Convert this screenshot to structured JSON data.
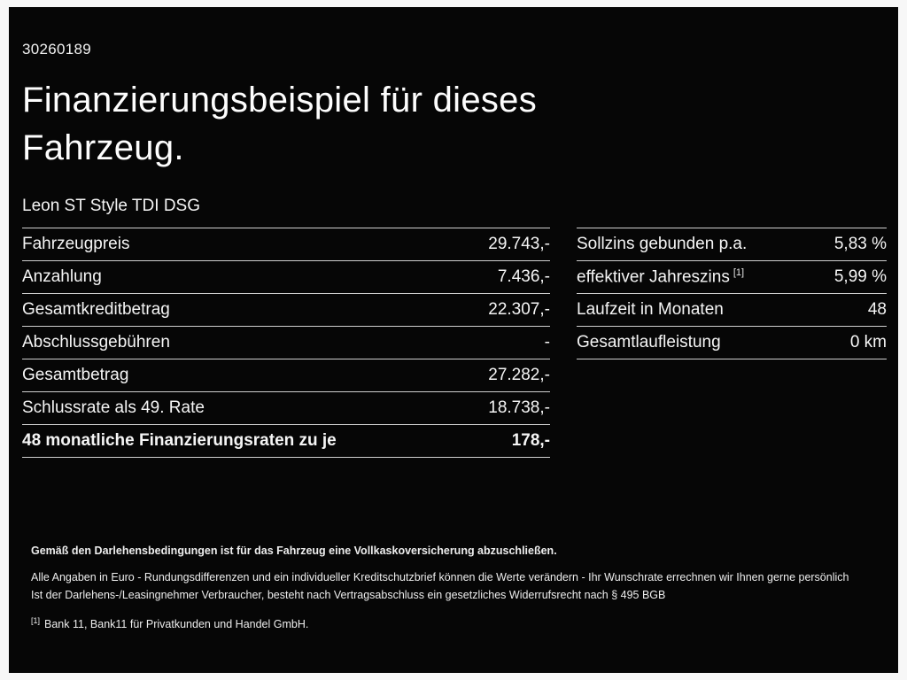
{
  "page": {
    "id_number": "30260189",
    "title_line1": "Finanzierungsbeispiel für dieses",
    "title_line2": "Fahrzeug.",
    "vehicle_name": "Leon ST Style TDI DSG"
  },
  "left_table": {
    "rows": [
      {
        "label": "Fahrzeugpreis",
        "value": "29.743,-"
      },
      {
        "label": "Anzahlung",
        "value": "7.436,-"
      },
      {
        "label": "Gesamtkreditbetrag",
        "value": "22.307,-"
      },
      {
        "label": "Abschlussgebühren",
        "value": "-"
      },
      {
        "label": "Gesamtbetrag",
        "value": "27.282,-"
      },
      {
        "label": "Schlussrate als 49. Rate",
        "value": "18.738,-"
      },
      {
        "label": "48 monatliche Finanzierungsraten zu je",
        "value": "178,-"
      }
    ]
  },
  "right_table": {
    "rows": [
      {
        "label": "Sollzins gebunden p.a.",
        "value": "5,83 %"
      },
      {
        "label": "effektiver Jahreszins",
        "sup": "[1]",
        "value": "5,99 %"
      },
      {
        "label": "Laufzeit in Monaten",
        "value": "48"
      },
      {
        "label": "Gesamtlaufleistung",
        "value": "0 km"
      }
    ]
  },
  "footer": {
    "insurance_note": "Gemäß den Darlehensbedingungen ist für das Fahrzeug eine Vollkaskoversicherung abzuschließen.",
    "disclaimer_line1": "Alle Angaben in Euro - Rundungsdifferenzen und ein individueller Kreditschutzbrief können die Werte verändern - Ihr Wunschrate errechnen wir Ihnen gerne persönlich",
    "disclaimer_line2": "Ist der Darlehens-/Leasingnehmer Verbraucher, besteht nach Vertragsabschluss ein gesetzliches Widerrufsrecht nach § 495 BGB",
    "footnote_marker": "[1]",
    "footnote_text": "Bank 11, Bank11 für Privatkunden und Handel GmbH."
  }
}
